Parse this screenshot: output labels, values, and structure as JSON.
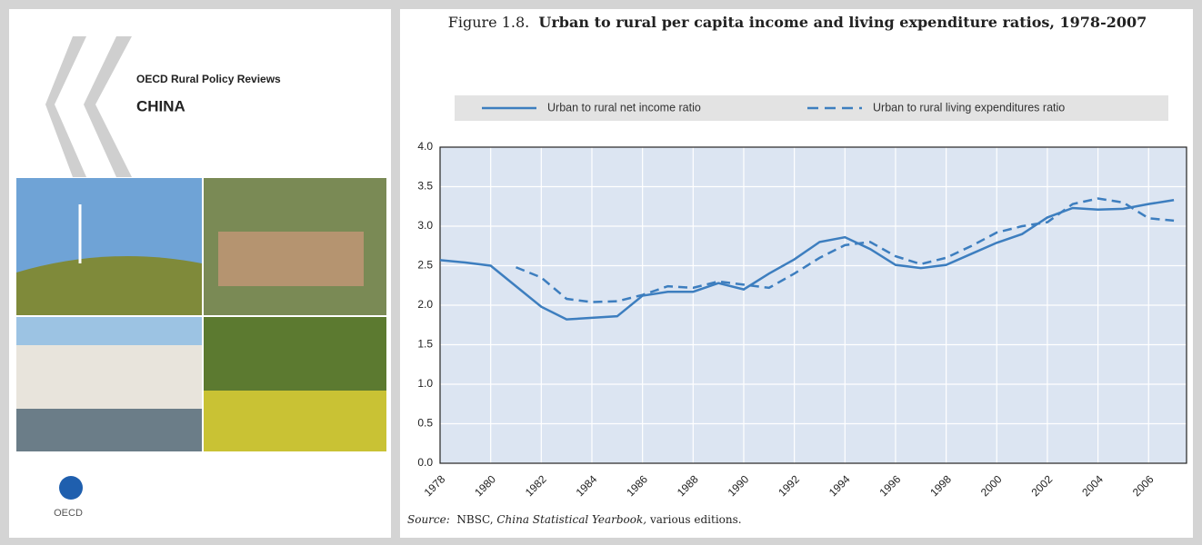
{
  "cover": {
    "series_name": "OECD Rural Policy Reviews",
    "title": "CHINA",
    "logo": "OECD"
  },
  "chart_data": {
    "type": "line",
    "figure_label": "Figure 1.8.",
    "title": "Urban to rural per capita income and living expenditure ratios, 1978-2007",
    "source": {
      "label": "Source:",
      "text_1": "NBSC,",
      "italic": "China Statistical Yearbook,",
      "text_2": "various editions."
    },
    "x": [
      1978,
      1979,
      1980,
      1981,
      1982,
      1983,
      1984,
      1985,
      1986,
      1987,
      1988,
      1989,
      1990,
      1991,
      1992,
      1993,
      1994,
      1995,
      1996,
      1997,
      1998,
      1999,
      2000,
      2001,
      2002,
      2003,
      2004,
      2005,
      2006,
      2007
    ],
    "series": [
      {
        "name": "Urban to rural net income ratio",
        "color": "#3d7ebf",
        "dash": false,
        "values": [
          2.57,
          2.54,
          2.5,
          2.24,
          1.98,
          1.82,
          1.84,
          1.86,
          2.12,
          2.17,
          2.17,
          2.28,
          2.2,
          2.4,
          2.58,
          2.8,
          2.86,
          2.71,
          2.51,
          2.47,
          2.51,
          2.65,
          2.79,
          2.9,
          3.11,
          3.23,
          3.21,
          3.22,
          3.28,
          3.33
        ]
      },
      {
        "name": "Urban to rural living expenditures ratio",
        "color": "#3d7ebf",
        "dash": true,
        "values": [
          null,
          null,
          null,
          2.48,
          2.35,
          2.08,
          2.04,
          2.05,
          2.13,
          2.24,
          2.22,
          2.3,
          2.26,
          2.22,
          2.4,
          2.6,
          2.76,
          2.8,
          2.62,
          2.52,
          2.6,
          2.75,
          2.92,
          3.0,
          3.05,
          3.28,
          3.35,
          3.3,
          3.1,
          3.07
        ]
      }
    ],
    "xlim": [
      1978,
      2007.5
    ],
    "xticks": [
      1978,
      1980,
      1982,
      1984,
      1986,
      1988,
      1990,
      1992,
      1994,
      1996,
      1998,
      2000,
      2002,
      2004,
      2006
    ],
    "ylim": [
      0,
      4
    ],
    "yticks": [
      {
        "value": 0,
        "label": "0.0"
      },
      0.5,
      {
        "value": 1,
        "label": "1.0"
      },
      1.5,
      {
        "value": 2,
        "label": "2.0"
      },
      2.5,
      {
        "value": 3,
        "label": "3.0"
      },
      3.5,
      {
        "value": 4,
        "label": "4.0"
      }
    ],
    "grid": true
  }
}
